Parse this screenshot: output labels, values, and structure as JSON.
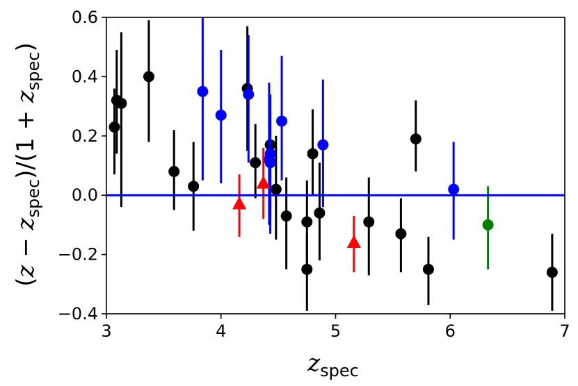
{
  "chart_data": {
    "type": "scatter",
    "title": "",
    "xlabel": {
      "main": "z",
      "sub": "spec"
    },
    "ylabel": {
      "open": "(",
      "z1": "z",
      "minus": " − ",
      "z2": "z",
      "sub1": "spec",
      "mid": ")/(1 + ",
      "z3": "z",
      "sub2": "spec",
      "close": ")"
    },
    "xlim": [
      3,
      7
    ],
    "ylim": [
      -0.4,
      0.6
    ],
    "xticks": [
      3,
      4,
      5,
      6,
      7
    ],
    "xtick_labels": [
      "3",
      "4",
      "5",
      "6",
      "7"
    ],
    "yticks": [
      -0.4,
      -0.2,
      0.0,
      0.2,
      0.4,
      0.6
    ],
    "ytick_labels": [
      "−0.4",
      "−0.2",
      "0.0",
      "0.2",
      "0.4",
      "0.6"
    ],
    "grid": false,
    "legend": false,
    "reference_line": {
      "y": 0.0,
      "color": "#0000ff"
    },
    "series": [
      {
        "color": "#000000",
        "marker": "circle",
        "points": [
          {
            "x": 3.07,
            "y": 0.23,
            "lo": 0.07,
            "hi": 0.36
          },
          {
            "x": 3.09,
            "y": 0.32,
            "lo": 0.14,
            "hi": 0.49
          },
          {
            "x": 3.13,
            "y": 0.31,
            "lo": -0.04,
            "hi": 0.55
          },
          {
            "x": 3.37,
            "y": 0.4,
            "lo": 0.18,
            "hi": 0.59
          },
          {
            "x": 3.59,
            "y": 0.08,
            "lo": -0.05,
            "hi": 0.22
          },
          {
            "x": 3.76,
            "y": 0.03,
            "lo": -0.12,
            "hi": 0.18
          },
          {
            "x": 4.23,
            "y": 0.36,
            "lo": 0.15,
            "hi": 0.57
          },
          {
            "x": 4.3,
            "y": 0.11,
            "lo": -0.01,
            "hi": 0.24
          },
          {
            "x": 4.43,
            "y": 0.17,
            "lo": -0.04,
            "hi": 0.34
          },
          {
            "x": 4.48,
            "y": 0.02,
            "lo": -0.15,
            "hi": 0.2
          },
          {
            "x": 4.57,
            "y": -0.07,
            "lo": -0.25,
            "hi": 0.06
          },
          {
            "x": 4.75,
            "y": -0.09,
            "lo": -0.25,
            "hi": 0.05
          },
          {
            "x": 4.75,
            "y": -0.25,
            "lo": -0.39,
            "hi": -0.13
          },
          {
            "x": 4.8,
            "y": 0.14,
            "lo": 0.0,
            "hi": 0.29
          },
          {
            "x": 4.86,
            "y": -0.06,
            "lo": -0.22,
            "hi": 0.11
          },
          {
            "x": 5.29,
            "y": -0.09,
            "lo": -0.27,
            "hi": 0.06
          },
          {
            "x": 5.57,
            "y": -0.13,
            "lo": -0.26,
            "hi": -0.01
          },
          {
            "x": 5.7,
            "y": 0.19,
            "lo": 0.08,
            "hi": 0.32
          },
          {
            "x": 5.81,
            "y": -0.25,
            "lo": -0.37,
            "hi": -0.14
          },
          {
            "x": 6.89,
            "y": -0.26,
            "lo": -0.39,
            "hi": -0.13
          }
        ]
      },
      {
        "color": "#0000ff",
        "marker": "circle",
        "points": [
          {
            "x": 3.84,
            "y": 0.35,
            "lo": 0.05,
            "hi": 0.6
          },
          {
            "x": 4.0,
            "y": 0.27,
            "lo": 0.04,
            "hi": 0.49
          },
          {
            "x": 4.24,
            "y": 0.34,
            "lo": 0.11,
            "hi": 0.54
          },
          {
            "x": 4.42,
            "y": 0.12,
            "lo": -0.1,
            "hi": 0.38
          },
          {
            "x": 4.43,
            "y": 0.14,
            "lo": -0.08,
            "hi": 0.34
          },
          {
            "x": 4.43,
            "y": 0.11,
            "lo": -0.13,
            "hi": 0.28
          },
          {
            "x": 4.53,
            "y": 0.25,
            "lo": 0.05,
            "hi": 0.47
          },
          {
            "x": 4.89,
            "y": 0.17,
            "lo": -0.04,
            "hi": 0.39
          },
          {
            "x": 6.03,
            "y": 0.02,
            "lo": -0.15,
            "hi": 0.18
          }
        ]
      },
      {
        "color": "#ff0000",
        "marker": "triangle",
        "points": [
          {
            "x": 4.16,
            "y": -0.03,
            "lo": -0.14,
            "hi": 0.07
          },
          {
            "x": 4.37,
            "y": 0.04,
            "lo": -0.08,
            "hi": 0.16
          },
          {
            "x": 5.16,
            "y": -0.16,
            "lo": -0.26,
            "hi": -0.07
          }
        ]
      },
      {
        "color": "#008000",
        "marker": "circle",
        "points": [
          {
            "x": 6.33,
            "y": -0.1,
            "lo": -0.25,
            "hi": 0.03
          }
        ]
      }
    ]
  }
}
